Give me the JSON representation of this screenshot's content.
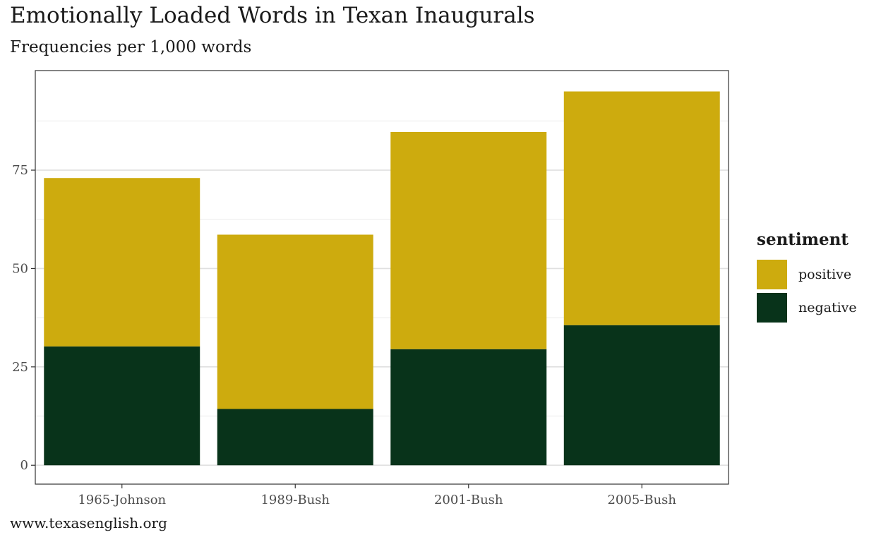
{
  "chart_data": {
    "type": "bar",
    "stacked": true,
    "title": "Emotionally Loaded Words in Texan Inaugurals",
    "subtitle": "Frequencies per 1,000 words",
    "caption": "www.texasenglish.org",
    "xlabel": "",
    "ylabel": "",
    "categories": [
      "1965-Johnson",
      "1989-Bush",
      "2001-Bush",
      "2005-Bush"
    ],
    "series": [
      {
        "name": "negative",
        "values": [
          30.2,
          14.3,
          29.5,
          35.6
        ],
        "color": "#08331a"
      },
      {
        "name": "positive",
        "values": [
          42.8,
          44.3,
          55.2,
          59.4
        ],
        "color": "#cdab0e"
      }
    ],
    "ylim": [
      -4.8,
      100.3
    ],
    "yticks": [
      0,
      25,
      50,
      75
    ],
    "grid": true,
    "legend": {
      "title": "sentiment",
      "position": "right",
      "items": [
        {
          "label": "positive",
          "color": "#cdab0e"
        },
        {
          "label": "negative",
          "color": "#08331a"
        }
      ]
    }
  }
}
